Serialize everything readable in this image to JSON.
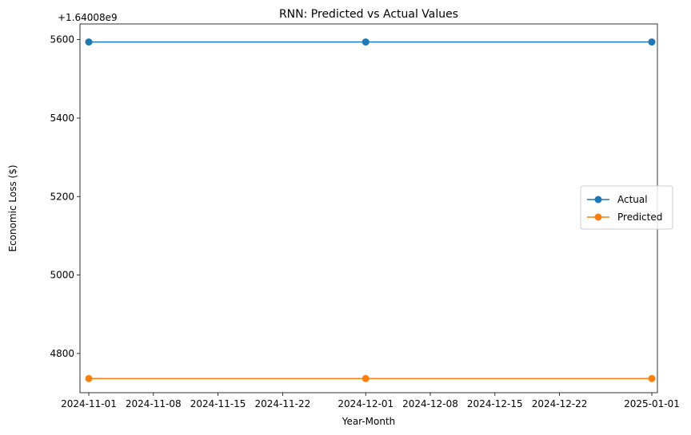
{
  "chart_data": {
    "type": "line",
    "title": "RNN: Predicted vs Actual Values",
    "xlabel": "Year-Month",
    "ylabel": "Economic Loss ($)",
    "offset_label": "+1.64008e9",
    "x": [
      "2024-11-01",
      "2024-12-01",
      "2025-01-01"
    ],
    "x_ticks": [
      "2024-11-01",
      "2024-11-08",
      "2024-11-15",
      "2024-11-22",
      "2024-12-01",
      "2024-12-08",
      "2024-12-15",
      "2024-12-22",
      "2025-01-01"
    ],
    "y_ticks": [
      4800,
      5000,
      5200,
      5400,
      5600
    ],
    "ylim": [
      4700,
      5640
    ],
    "grid": false,
    "legend_position": "center-right",
    "series": [
      {
        "name": "Actual",
        "color": "#1f77b4",
        "values": [
          5594,
          5594,
          5594
        ]
      },
      {
        "name": "Predicted",
        "color": "#ff7f0e",
        "values": [
          4736,
          4736,
          4736
        ]
      }
    ]
  }
}
